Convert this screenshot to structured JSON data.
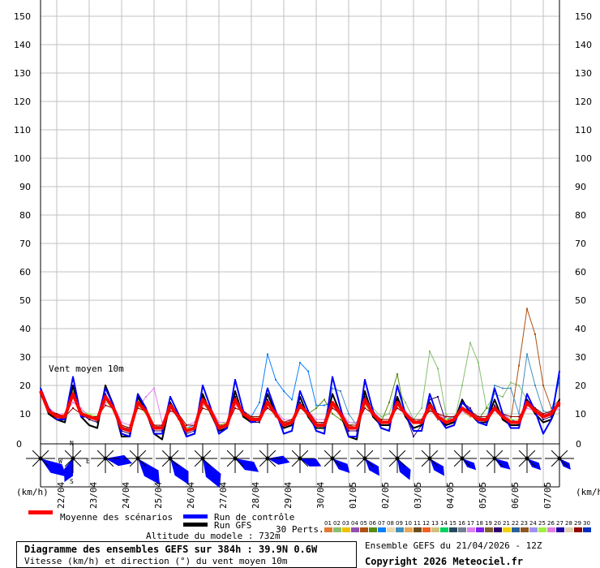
{
  "chart_data": {
    "type": "line",
    "plot_label": "Vent moyen 10m",
    "yunit": "(km/h)",
    "ylim": [
      0,
      150
    ],
    "yticks": [
      0,
      10,
      20,
      30,
      40,
      50,
      60,
      70,
      80,
      90,
      100,
      110,
      120,
      130,
      140,
      150
    ],
    "grid": true,
    "x_step_hours": 6,
    "xtick_labels": [
      "22/04",
      "23/04",
      "24/04",
      "25/04",
      "26/04",
      "27/04",
      "28/04",
      "29/04",
      "30/04",
      "01/05",
      "02/05",
      "03/05",
      "04/05",
      "05/05",
      "06/05",
      "07/05"
    ],
    "series": [
      {
        "name": "Moyenne des scénarios",
        "color": "#ff0000",
        "role": "mean",
        "values": [
          18,
          11,
          9,
          9,
          17,
          10,
          9,
          8,
          16,
          12,
          5,
          4,
          14,
          11,
          5,
          5,
          13,
          9,
          4,
          5,
          15,
          11,
          5,
          6,
          15,
          10,
          8,
          8,
          14,
          10,
          6,
          7,
          13,
          10,
          6,
          6,
          14,
          10,
          5,
          5,
          15,
          10,
          7,
          7,
          14,
          10,
          7,
          7,
          13,
          9,
          7,
          8,
          12,
          10,
          8,
          8,
          12,
          9,
          7,
          7,
          14,
          11,
          9,
          10,
          14
        ]
      },
      {
        "name": "Run de contrôle",
        "color": "#0000ff",
        "role": "control",
        "values": [
          19,
          12,
          8,
          8,
          23,
          9,
          9,
          8,
          19,
          13,
          3,
          2,
          17,
          12,
          3,
          3,
          16,
          10,
          2,
          3,
          20,
          12,
          3,
          5,
          22,
          11,
          7,
          8,
          19,
          11,
          3,
          4,
          18,
          11,
          4,
          3,
          23,
          12,
          2,
          2,
          22,
          11,
          5,
          4,
          20,
          10,
          4,
          4,
          17,
          9,
          5,
          6,
          14,
          11,
          7,
          6,
          19,
          10,
          5,
          5,
          17,
          11,
          3,
          8,
          25
        ]
      },
      {
        "name": "Run GFS",
        "color": "#000000",
        "role": "gfs",
        "values": [
          18,
          10,
          8,
          7,
          20,
          9,
          6,
          5,
          20,
          13,
          2,
          2,
          16,
          11,
          3,
          1,
          14,
          9,
          2,
          3,
          17,
          10,
          4,
          5,
          18,
          9,
          7,
          8,
          17,
          10,
          5,
          6,
          16,
          9,
          5,
          5,
          17,
          10,
          2,
          1,
          18,
          9,
          6,
          6,
          16,
          9,
          5,
          6,
          14,
          9,
          6,
          7,
          15,
          10,
          7,
          7,
          15,
          8,
          6,
          6,
          15,
          10,
          7,
          8,
          15
        ]
      }
    ],
    "members": [
      {
        "id": "01",
        "color": "#e07b30",
        "values": [
          17,
          10,
          9,
          10,
          16,
          11,
          8,
          9,
          15,
          12,
          6,
          5,
          13,
          10,
          6,
          6,
          12,
          10,
          5,
          6,
          14,
          10,
          6,
          7,
          14,
          11,
          9,
          8,
          13,
          9,
          7,
          8,
          12,
          11,
          7,
          7,
          13,
          9,
          6,
          6,
          14,
          11,
          8,
          8,
          15,
          9,
          8,
          6,
          12,
          10,
          8,
          9,
          11,
          9,
          9,
          7,
          13,
          10,
          8,
          6,
          15,
          12,
          10,
          11,
          13
        ]
      },
      {
        "id": "02",
        "color": "#88c070",
        "values": [
          18,
          12,
          10,
          9,
          18,
          11,
          10,
          7,
          15,
          11,
          6,
          4,
          15,
          10,
          5,
          6,
          13,
          8,
          5,
          4,
          14,
          12,
          6,
          7,
          16,
          9,
          8,
          9,
          15,
          11,
          6,
          8,
          12,
          10,
          7,
          6,
          14,
          11,
          6,
          7,
          16,
          12,
          9,
          10,
          19,
          14,
          8,
          12,
          32,
          26,
          10,
          7,
          20,
          35,
          28,
          12,
          17,
          16,
          21,
          20,
          15,
          12,
          10,
          9,
          15
        ]
      },
      {
        "id": "05",
        "color": "#b05010",
        "values": [
          18,
          11,
          10,
          8,
          16,
          10,
          9,
          9,
          17,
          11,
          5,
          5,
          14,
          12,
          6,
          5,
          12,
          9,
          5,
          5,
          15,
          10,
          5,
          7,
          14,
          10,
          9,
          7,
          14,
          9,
          7,
          7,
          13,
          9,
          6,
          7,
          13,
          10,
          6,
          5,
          14,
          9,
          8,
          8,
          13,
          11,
          7,
          8,
          12,
          8,
          8,
          9,
          11,
          10,
          9,
          8,
          12,
          10,
          8,
          27,
          47,
          38,
          20,
          12,
          15
        ]
      },
      {
        "id": "07",
        "color": "#0a80ff",
        "values": [
          17,
          11,
          10,
          10,
          17,
          10,
          9,
          8,
          16,
          12,
          5,
          5,
          13,
          12,
          5,
          5,
          12,
          9,
          5,
          6,
          14,
          11,
          6,
          6,
          15,
          10,
          9,
          14,
          31,
          22,
          18,
          15,
          28,
          25,
          13,
          13,
          14,
          11,
          6,
          6,
          15,
          10,
          8,
          8,
          13,
          10,
          8,
          8,
          12,
          9,
          8,
          8,
          11,
          10,
          8,
          8,
          12,
          10,
          8,
          7,
          13,
          11,
          9,
          11,
          22
        ]
      },
      {
        "id": "09",
        "color": "#4090c0",
        "values": [
          18,
          10,
          9,
          9,
          16,
          10,
          9,
          8,
          16,
          11,
          5,
          4,
          14,
          11,
          5,
          6,
          13,
          9,
          5,
          5,
          14,
          11,
          5,
          6,
          15,
          10,
          8,
          8,
          14,
          10,
          6,
          7,
          13,
          10,
          6,
          7,
          19,
          18,
          10,
          6,
          14,
          10,
          7,
          7,
          14,
          10,
          7,
          8,
          13,
          9,
          8,
          9,
          12,
          10,
          9,
          8,
          20,
          19,
          19,
          10,
          31,
          20,
          11,
          10,
          14
        ]
      },
      {
        "id": "06",
        "color": "#5a8a10",
        "values": [
          18,
          11,
          8,
          9,
          17,
          10,
          9,
          8,
          16,
          12,
          5,
          4,
          14,
          11,
          5,
          5,
          13,
          9,
          4,
          5,
          15,
          11,
          5,
          6,
          15,
          10,
          8,
          8,
          14,
          10,
          6,
          7,
          13,
          10,
          12,
          15,
          10,
          8,
          5,
          5,
          15,
          10,
          7,
          14,
          24,
          9,
          7,
          7,
          13,
          9,
          7,
          8,
          12,
          10,
          8,
          12,
          12,
          9,
          7,
          7,
          14,
          11,
          9,
          10,
          14
        ]
      },
      {
        "id": "17",
        "color": "#e080f0",
        "values": [
          17,
          12,
          10,
          10,
          14,
          12,
          9,
          9,
          14,
          13,
          7,
          6,
          12,
          16,
          19,
          7,
          11,
          10,
          6,
          7,
          13,
          12,
          7,
          7,
          13,
          11,
          9,
          9,
          12,
          11,
          8,
          8,
          12,
          11,
          8,
          8,
          12,
          11,
          7,
          7,
          13,
          11,
          8,
          8,
          12,
          11,
          8,
          8,
          12,
          10,
          8,
          8,
          11,
          10,
          9,
          9,
          12,
          10,
          8,
          8,
          12,
          11,
          10,
          10,
          12
        ]
      },
      {
        "id": "20",
        "color": "#300070",
        "values": [
          18,
          10,
          9,
          8,
          17,
          10,
          8,
          7,
          17,
          12,
          4,
          3,
          14,
          11,
          4,
          4,
          14,
          9,
          3,
          4,
          16,
          11,
          4,
          5,
          16,
          10,
          7,
          7,
          15,
          10,
          5,
          6,
          14,
          10,
          5,
          5,
          14,
          10,
          4,
          4,
          16,
          10,
          6,
          6,
          15,
          10,
          2,
          6,
          15,
          16,
          7,
          7,
          14,
          12,
          7,
          6,
          13,
          9,
          6,
          6,
          15,
          12,
          8,
          9,
          15
        ]
      },
      {
        "id": "25",
        "color": "#a0f040",
        "values": [
          17,
          11,
          10,
          9,
          16,
          10,
          10,
          9,
          15,
          11,
          6,
          5,
          13,
          10,
          6,
          6,
          12,
          9,
          5,
          5,
          14,
          10,
          6,
          7,
          14,
          10,
          9,
          9,
          13,
          10,
          7,
          8,
          12,
          10,
          7,
          4,
          13,
          10,
          6,
          6,
          13,
          10,
          8,
          8,
          13,
          10,
          8,
          8,
          12,
          9,
          8,
          8,
          12,
          10,
          8,
          8,
          12,
          9,
          8,
          8,
          13,
          11,
          9,
          10,
          13
        ]
      },
      {
        "id": "29",
        "color": "#900000",
        "values": [
          17,
          11,
          10,
          9,
          12,
          10,
          9,
          9,
          13,
          12,
          6,
          5,
          12,
          11,
          6,
          6,
          11,
          10,
          6,
          6,
          12,
          11,
          6,
          6,
          12,
          11,
          9,
          9,
          12,
          10,
          7,
          8,
          12,
          11,
          7,
          7,
          12,
          10,
          6,
          6,
          12,
          10,
          8,
          8,
          12,
          10,
          8,
          8,
          11,
          10,
          9,
          9,
          12,
          11,
          9,
          9,
          12,
          10,
          9,
          9,
          13,
          12,
          10,
          11,
          13
        ]
      }
    ],
    "wind_roses": [
      {
        "dir": 125,
        "speed": 28
      },
      {
        "dir": 200,
        "speed": 22
      },
      {
        "dir": 100,
        "speed": 24
      },
      {
        "dir": 140,
        "speed": 30
      },
      {
        "dir": 145,
        "speed": 28
      },
      {
        "dir": 150,
        "speed": 30
      },
      {
        "dir": 120,
        "speed": 24
      },
      {
        "dir": 100,
        "speed": 20
      },
      {
        "dir": 110,
        "speed": 20
      },
      {
        "dir": 130,
        "speed": 20
      },
      {
        "dir": 140,
        "speed": 20
      },
      {
        "dir": 150,
        "speed": 22
      },
      {
        "dir": 140,
        "speed": 20
      },
      {
        "dir": 130,
        "speed": 16
      },
      {
        "dir": 125,
        "speed": 17
      },
      {
        "dir": 130,
        "speed": 16
      },
      {
        "dir": 135,
        "speed": 14
      }
    ],
    "compass": {
      "n": "N",
      "s": "S",
      "e": "E",
      "w": "W"
    },
    "zero_label": "0"
  },
  "legend": {
    "mean": "Moyenne des scénarios",
    "control": "Run de contrôle",
    "gfs": "Run GFS",
    "perts_label": "30 Perts.",
    "perts": [
      {
        "id": "01",
        "color": "#e07b30"
      },
      {
        "id": "02",
        "color": "#88c070"
      },
      {
        "id": "03",
        "color": "#f0c000"
      },
      {
        "id": "04",
        "color": "#9050b0"
      },
      {
        "id": "05",
        "color": "#b05010"
      },
      {
        "id": "06",
        "color": "#5a8a10"
      },
      {
        "id": "07",
        "color": "#0a80ff"
      },
      {
        "id": "08",
        "color": "#e8d8b0"
      },
      {
        "id": "09",
        "color": "#4090c0"
      },
      {
        "id": "10",
        "color": "#e8a858"
      },
      {
        "id": "11",
        "color": "#6a5020"
      },
      {
        "id": "12",
        "color": "#f06020"
      },
      {
        "id": "13",
        "color": "#d0c080"
      },
      {
        "id": "14",
        "color": "#00d060"
      },
      {
        "id": "15",
        "color": "#284860"
      },
      {
        "id": "16",
        "color": "#708090"
      },
      {
        "id": "17",
        "color": "#e080f0"
      },
      {
        "id": "18",
        "color": "#8020f0"
      },
      {
        "id": "19",
        "color": "#806030"
      },
      {
        "id": "20",
        "color": "#300070"
      },
      {
        "id": "21",
        "color": "#f0d000"
      },
      {
        "id": "22",
        "color": "#2860a0"
      },
      {
        "id": "23",
        "color": "#905820"
      },
      {
        "id": "24",
        "color": "#a090f0"
      },
      {
        "id": "25",
        "color": "#a0f040"
      },
      {
        "id": "26",
        "color": "#e080e0"
      },
      {
        "id": "27",
        "color": "#2000a0"
      },
      {
        "id": "28",
        "color": "#e0d0b0"
      },
      {
        "id": "29",
        "color": "#900000"
      },
      {
        "id": "30",
        "color": "#0030c0"
      }
    ]
  },
  "footer": {
    "altitude": "Altitude du modele : 732m",
    "title": "Diagramme des ensembles GEFS sur 384h : 39.9N 0.6W",
    "subtitle": "Vitesse (km/h) et direction (°) du vent moyen 10m",
    "run": "Ensemble GEFS du 21/04/2026 - 12Z",
    "copyright": "Copyright 2026 Meteociel.fr"
  }
}
